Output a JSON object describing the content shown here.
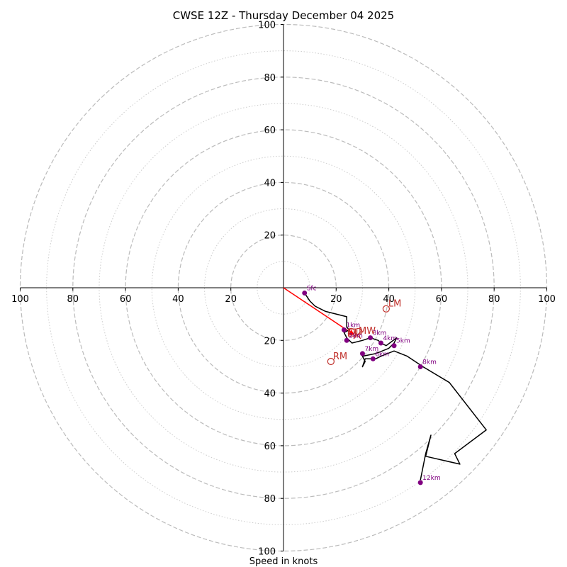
{
  "chart_data": {
    "type": "scatter",
    "subtype": "hodograph",
    "title": "CWSE 12Z - Thursday December 04 2025",
    "xlabel": "Speed in knots",
    "max_speed": 100,
    "ring_major": [
      20,
      40,
      60,
      80,
      100
    ],
    "ring_minor": [
      10,
      30,
      50,
      70,
      90
    ],
    "tick_values_positive": [
      "20",
      "40",
      "60",
      "80",
      "100"
    ],
    "tick_values_positive_x": [
      "20",
      "40",
      "60",
      "80",
      "100"
    ],
    "tick_values_negative_x": [
      "100",
      "80",
      "60",
      "40",
      "20"
    ],
    "tick_values_negative_y": [
      "20",
      "40",
      "60",
      "80",
      "100"
    ],
    "colors": {
      "trace": "#000000",
      "height_points": "#800080",
      "motion": "#c0302b",
      "shear_line": "#ff0000",
      "grid_major": "#bbbbbb",
      "grid_minor": "#cccccc"
    },
    "hodograph_trace": [
      [
        8,
        -2
      ],
      [
        10,
        -5
      ],
      [
        12,
        -7
      ],
      [
        16,
        -9
      ],
      [
        24,
        -11
      ],
      [
        24,
        -15
      ],
      [
        25,
        -16
      ],
      [
        23,
        -17
      ],
      [
        24,
        -19
      ],
      [
        26,
        -21
      ],
      [
        30,
        -20
      ],
      [
        33,
        -19
      ],
      [
        36,
        -20
      ],
      [
        37,
        -21
      ],
      [
        39,
        -22
      ],
      [
        43,
        -19
      ],
      [
        42,
        -21
      ],
      [
        40,
        -23
      ],
      [
        35,
        -25
      ],
      [
        30,
        -26
      ],
      [
        31,
        -28
      ],
      [
        30,
        -30
      ],
      [
        31,
        -27
      ],
      [
        35,
        -27
      ],
      [
        37,
        -26
      ],
      [
        42,
        -24
      ],
      [
        47,
        -26
      ],
      [
        53,
        -30
      ],
      [
        63,
        -36
      ],
      [
        77,
        -54
      ],
      [
        65,
        -63
      ],
      [
        67,
        -67
      ],
      [
        54,
        -64
      ],
      [
        56,
        -56
      ],
      [
        54,
        -63
      ],
      [
        52,
        -73
      ]
    ],
    "height_points": [
      {
        "label": "Sfc",
        "u": 8,
        "v": -2
      },
      {
        "label": "1km",
        "u": 23,
        "v": -16
      },
      {
        "label": "2km",
        "u": 24,
        "v": -20
      },
      {
        "label": "3km",
        "u": 33,
        "v": -19
      },
      {
        "label": "4km",
        "u": 37,
        "v": -21
      },
      {
        "label": "5km",
        "u": 42,
        "v": -22
      },
      {
        "label": "6km",
        "u": 34,
        "v": -27
      },
      {
        "label": "7km",
        "u": 30,
        "v": -25
      },
      {
        "label": "8km",
        "u": 52,
        "v": -30
      },
      {
        "label": "12km",
        "u": 52,
        "v": -74
      }
    ],
    "storm_motions": [
      {
        "label": "LM",
        "u": 39,
        "v": -8
      },
      {
        "label": "RM",
        "u": 18,
        "v": -28
      },
      {
        "label": "MW",
        "u": 28,
        "v": -18
      },
      {
        "label": "DD",
        "u": 26,
        "v": -17
      }
    ],
    "shear_line": {
      "from": [
        0,
        0
      ],
      "to": [
        27,
        -18
      ]
    }
  }
}
